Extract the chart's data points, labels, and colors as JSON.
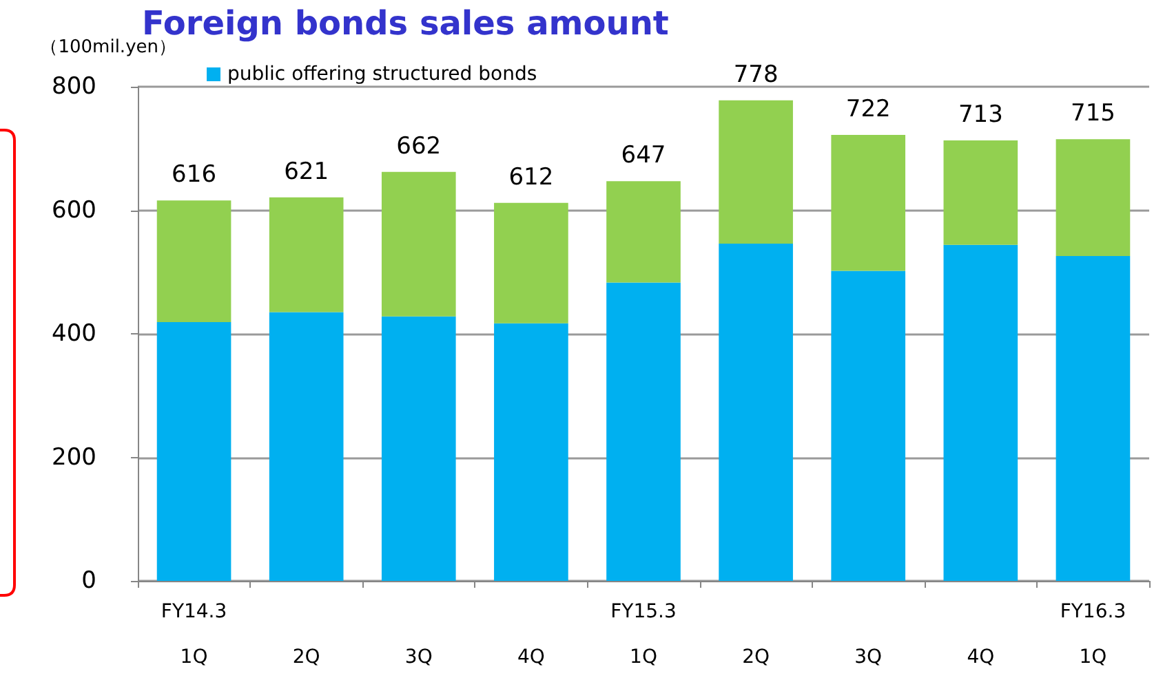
{
  "chart_data": {
    "type": "bar",
    "title": "Foreign bonds sales amount",
    "ylabel": "（100mil.yen）",
    "categories": [
      "FY14.3\n1Q",
      "2Q",
      "3Q",
      "4Q",
      "FY15.3\n1Q",
      "2Q",
      "3Q",
      "4Q",
      "FY16.3\n1Q"
    ],
    "stacked": true,
    "series": [
      {
        "name": "public offering structured bonds",
        "color": "#00b0f0",
        "values": [
          419,
          435,
          428,
          417,
          483,
          546,
          502,
          544,
          526
        ]
      },
      {
        "color": "#92d050",
        "values": [
          197,
          186,
          234,
          195,
          164,
          232,
          220,
          169,
          189
        ]
      }
    ],
    "ylim": [
      0,
      800
    ],
    "yticks": [
      0,
      200,
      400,
      600,
      800
    ],
    "grid": "y",
    "legend": "top left",
    "totals": [
      "616",
      "621",
      "662",
      "612",
      "647",
      "778",
      "722",
      "713",
      "715"
    ]
  }
}
